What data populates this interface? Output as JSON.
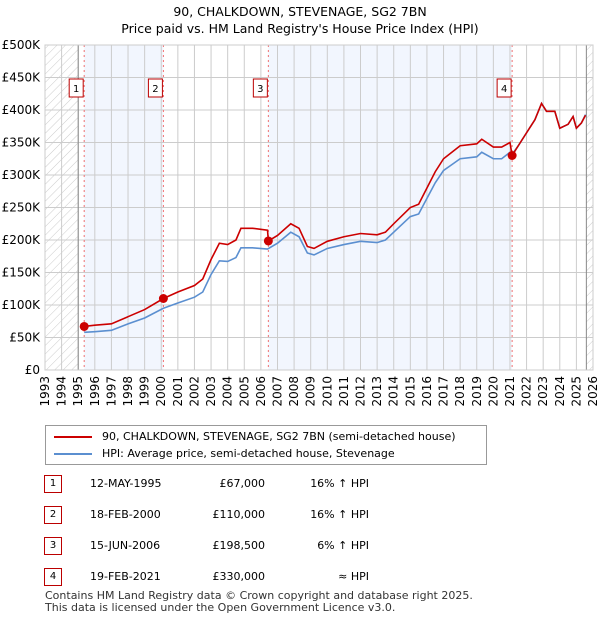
{
  "chart_data": {
    "type": "line",
    "title": "90, CHALKDOWN, STEVENAGE, SG2 7BN",
    "subtitle": "Price paid vs. HM Land Registry's House Price Index (HPI)",
    "xlim": [
      1993,
      2026
    ],
    "ylim": [
      0,
      500000
    ],
    "y_ticks": [
      0,
      50000,
      100000,
      150000,
      200000,
      250000,
      300000,
      350000,
      400000,
      450000,
      500000
    ],
    "y_tick_labels": [
      "£0",
      "£50K",
      "£100K",
      "£150K",
      "£200K",
      "£250K",
      "£300K",
      "£350K",
      "£400K",
      "£450K",
      "£500K"
    ],
    "x_tick_labels": [
      "1993",
      "1994",
      "1995",
      "1996",
      "1997",
      "1998",
      "1999",
      "2000",
      "2001",
      "2002",
      "2003",
      "2004",
      "2005",
      "2006",
      "2007",
      "2008",
      "2009",
      "2010",
      "2011",
      "2012",
      "2013",
      "2014",
      "2015",
      "2016",
      "2017",
      "2018",
      "2019",
      "2020",
      "2021",
      "2022",
      "2023",
      "2024",
      "2025",
      "2026"
    ],
    "grid": true,
    "data_range": [
      1995.0,
      2025.6
    ],
    "series": [
      {
        "name": "90, CHALKDOWN, STEVENAGE, SG2 7BN (semi-detached house)",
        "color": "#cc0000",
        "x": [
          1995.36,
          1996,
          1997,
          1998,
          1999,
          2000.13,
          2001,
          2002,
          2002.5,
          2003,
          2003.5,
          2004,
          2004.5,
          2004.8,
          2005.5,
          2006.4,
          2006.45,
          2007,
          2007.8,
          2008.3,
          2008.8,
          2009.2,
          2010,
          2011,
          2012,
          2013,
          2013.5,
          2014,
          2015,
          2015.5,
          2016,
          2016.5,
          2017,
          2017.5,
          2018,
          2019,
          2019.3,
          2020,
          2020.5,
          2021.0,
          2021.13,
          2021.5,
          2022,
          2022.5,
          2022.9,
          2023.2,
          2023.7,
          2024,
          2024.5,
          2024.8,
          2025,
          2025.3,
          2025.55
        ],
        "y": [
          67000,
          69000,
          71000,
          82000,
          93000,
          110000,
          120000,
          130000,
          140000,
          170000,
          195000,
          193000,
          200000,
          218000,
          218000,
          215000,
          198500,
          207000,
          225000,
          218000,
          190000,
          187000,
          198000,
          205000,
          210000,
          208000,
          212000,
          225000,
          250000,
          255000,
          280000,
          305000,
          325000,
          335000,
          345000,
          348000,
          355000,
          343000,
          343000,
          350000,
          330000,
          345000,
          365000,
          385000,
          410000,
          398000,
          398000,
          372000,
          378000,
          390000,
          372000,
          380000,
          392000
        ]
      },
      {
        "name": "HPI: Average price, semi-detached house, Stevenage",
        "color": "#5b8fd0",
        "x": [
          1995.36,
          1996,
          1997,
          1998,
          1999,
          2000.13,
          2001,
          2002,
          2002.5,
          2003,
          2003.5,
          2004,
          2004.5,
          2004.8,
          2005.5,
          2006.4,
          2007,
          2007.8,
          2008.3,
          2008.8,
          2009.2,
          2010,
          2011,
          2012,
          2013,
          2013.5,
          2014,
          2015,
          2015.5,
          2016,
          2016.5,
          2017,
          2017.5,
          2018,
          2019,
          2019.3,
          2020,
          2020.5,
          2021.0,
          2021.13,
          2021.5,
          2022,
          2022.5,
          2022.9,
          2023.2,
          2023.7,
          2024,
          2024.5,
          2024.8,
          2025,
          2025.3,
          2025.55
        ],
        "y": [
          58000,
          59000,
          61000,
          71000,
          80000,
          95000,
          103000,
          112000,
          120000,
          147000,
          168000,
          167000,
          173000,
          188000,
          188000,
          186000,
          195000,
          212000,
          205000,
          180000,
          177000,
          187000,
          193000,
          198000,
          196000,
          200000,
          212000,
          236000,
          240000,
          264000,
          288000,
          307000,
          316000,
          325000,
          328000,
          335000,
          325000,
          325000,
          335000,
          332000,
          345000,
          365000,
          385000,
          410000,
          398000,
          398000,
          372000,
          378000,
          390000,
          372000,
          380000,
          393000
        ]
      }
    ],
    "sales": [
      {
        "n": "1",
        "x": 1995.36,
        "y": 67000,
        "date": "12-MAY-1995",
        "price": "£67,000",
        "hpi": "16% ↑ HPI"
      },
      {
        "n": "2",
        "x": 2000.13,
        "y": 110000,
        "date": "18-FEB-2000",
        "price": "£110,000",
        "hpi": "16% ↑ HPI"
      },
      {
        "n": "3",
        "x": 2006.45,
        "y": 198500,
        "date": "15-JUN-2006",
        "price": "£198,500",
        "hpi": "6% ↑ HPI"
      },
      {
        "n": "4",
        "x": 2021.13,
        "y": 330000,
        "date": "19-FEB-2021",
        "price": "£330,000",
        "hpi": "≈ HPI"
      }
    ]
  },
  "footer": {
    "line1": "Contains HM Land Registry data © Crown copyright and database right 2025.",
    "line2": "This data is licensed under the Open Government Licence v3.0."
  }
}
